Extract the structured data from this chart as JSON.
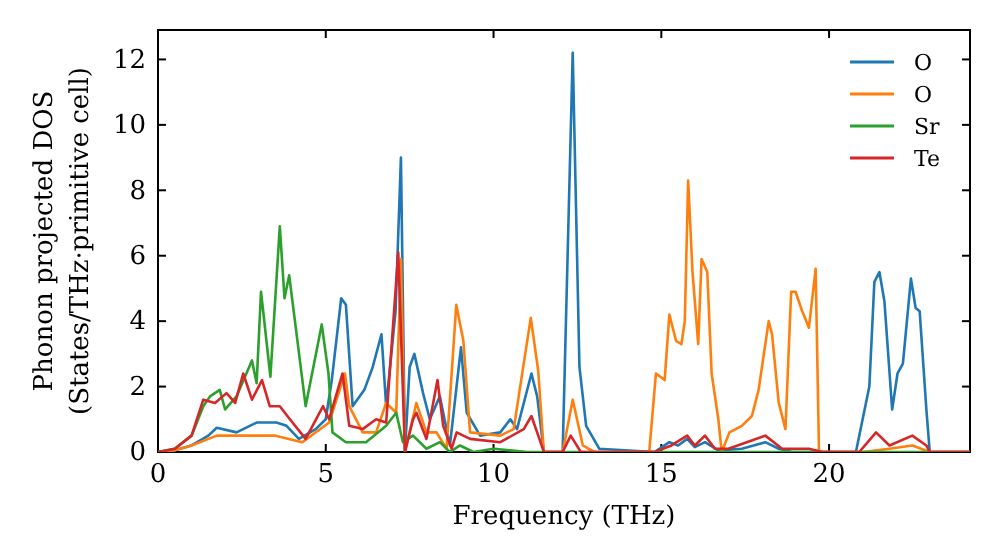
{
  "chart_data": {
    "type": "line",
    "xlabel": "Frequency (THz)",
    "ylabel": "Phonon projected DOS\n(States/THz·primitive cell)",
    "xlim": [
      0,
      24.2
    ],
    "ylim": [
      0,
      12.9
    ],
    "xticks": [
      0,
      5,
      10,
      15,
      20
    ],
    "yticks": [
      0,
      2,
      4,
      6,
      8,
      10,
      12
    ],
    "grid": false,
    "legend": "top right",
    "marker": "none",
    "line_style": "solid",
    "series": [
      {
        "name": "O",
        "color": "#1f77b4",
        "x": [
          0,
          0.5,
          1,
          1.5,
          1.75,
          2.34,
          2.94,
          3.53,
          3.83,
          4.2,
          4.7,
          5.0,
          5.18,
          5.46,
          5.6,
          5.8,
          6.15,
          6.4,
          6.66,
          6.8,
          7.08,
          7.24,
          7.36,
          7.5,
          7.64,
          7.9,
          8.1,
          8.4,
          8.7,
          9.03,
          9.2,
          9.6,
          10.2,
          10.5,
          10.7,
          11.13,
          11.3,
          11.5,
          12.06,
          12.36,
          12.56,
          12.76,
          13.15,
          14.8,
          15.24,
          15.5,
          15.77,
          16.0,
          16.3,
          16.7,
          17.4,
          18.1,
          18.5,
          18.9,
          20.8,
          21.2,
          21.35,
          21.5,
          21.65,
          21.88,
          22.04,
          22.2,
          22.44,
          22.58,
          22.7,
          22.9,
          23.0,
          24.2
        ],
        "values": [
          0,
          0.05,
          0.2,
          0.5,
          0.74,
          0.6,
          0.9,
          0.9,
          0.8,
          0.4,
          0.7,
          1.0,
          2.2,
          4.7,
          4.5,
          1.4,
          1.9,
          2.6,
          3.6,
          1.4,
          4.3,
          9.0,
          0,
          2.6,
          3.0,
          1.8,
          1.0,
          1.7,
          0.2,
          3.2,
          1.2,
          0.5,
          0.6,
          1.0,
          0.7,
          2.4,
          1.7,
          0,
          0,
          12.2,
          2.6,
          0.8,
          0.1,
          0,
          0.3,
          0.2,
          0.4,
          0.15,
          0.3,
          0.05,
          0.1,
          0.3,
          0.1,
          0,
          0,
          2.0,
          5.2,
          5.5,
          4.6,
          1.3,
          2.4,
          2.7,
          5.3,
          4.4,
          4.3,
          1.3,
          0,
          0
        ]
      },
      {
        "name": "O",
        "color": "#ff7f0e",
        "x": [
          0,
          0.5,
          1,
          1.75,
          2.5,
          3.5,
          4.3,
          5.1,
          5.57,
          5.7,
          6.1,
          6.5,
          6.8,
          7.1,
          7.24,
          7.36,
          7.7,
          8.0,
          8.3,
          8.6,
          8.89,
          9.1,
          9.3,
          10.2,
          10.6,
          11.11,
          11.33,
          11.5,
          12.06,
          12.36,
          12.66,
          13.0,
          14.64,
          14.84,
          15.1,
          15.24,
          15.44,
          15.6,
          15.7,
          15.8,
          15.93,
          16.1,
          16.2,
          16.37,
          16.5,
          16.7,
          16.8,
          17.03,
          17.4,
          17.7,
          17.9,
          18.2,
          18.3,
          18.5,
          18.7,
          18.87,
          19.0,
          19.2,
          19.4,
          19.6,
          19.7,
          21.0,
          21.8,
          22.48,
          23.0,
          24.2
        ],
        "values": [
          0,
          0.05,
          0.2,
          0.5,
          0.5,
          0.5,
          0.3,
          0.9,
          2.4,
          1.4,
          0.6,
          0.6,
          1.5,
          1.2,
          5.9,
          0,
          1.5,
          0.6,
          0.6,
          0.1,
          4.5,
          3.4,
          0.6,
          0.5,
          0.7,
          4.1,
          2.5,
          0,
          0,
          1.6,
          0.2,
          0,
          0,
          2.4,
          2.2,
          4.2,
          3.4,
          3.3,
          4.0,
          8.3,
          5.5,
          3.3,
          5.9,
          5.5,
          2.4,
          1.0,
          0,
          0.6,
          0.8,
          1.1,
          1.9,
          4.0,
          3.6,
          1.5,
          0.7,
          4.9,
          4.9,
          4.3,
          3.8,
          5.6,
          0,
          0,
          0.1,
          0.2,
          0,
          0
        ]
      },
      {
        "name": "Sr",
        "color": "#2ca02c",
        "x": [
          0,
          0.5,
          1,
          1.35,
          1.55,
          1.84,
          2.0,
          2.34,
          2.8,
          2.94,
          3.07,
          3.35,
          3.63,
          3.77,
          3.91,
          4.4,
          4.88,
          5.08,
          5.2,
          5.6,
          6.2,
          6.8,
          7.1,
          7.3,
          7.6,
          8.0,
          8.4,
          8.7,
          9.0,
          9.4,
          10,
          11,
          12,
          24.2
        ],
        "values": [
          0,
          0.1,
          0.5,
          1.4,
          1.7,
          1.9,
          1.3,
          1.7,
          2.8,
          2.1,
          4.9,
          2.3,
          6.9,
          4.7,
          5.4,
          1.4,
          3.9,
          2.4,
          0.6,
          0.3,
          0.3,
          0.8,
          1.2,
          0.3,
          0.5,
          0.1,
          0.3,
          0,
          0.2,
          0,
          0.1,
          0,
          0,
          0
        ]
      },
      {
        "name": "Te",
        "color": "#d62728",
        "x": [
          0,
          0.5,
          1,
          1.35,
          1.7,
          2.04,
          2.3,
          2.54,
          2.8,
          3.1,
          3.33,
          3.63,
          3.93,
          4.4,
          4.92,
          5.1,
          5.5,
          5.7,
          6.1,
          6.5,
          6.8,
          7.16,
          7.36,
          7.6,
          7.7,
          8.0,
          8.33,
          8.5,
          8.75,
          8.9,
          9.3,
          10.2,
          10.9,
          11.13,
          11.4,
          11.5,
          12.06,
          12.3,
          12.6,
          14.8,
          15.3,
          15.77,
          16.0,
          16.3,
          16.6,
          17.0,
          18.1,
          18.6,
          19.4,
          19.8,
          20.9,
          21.4,
          21.8,
          22.48,
          22.9,
          23.0,
          24.2
        ],
        "values": [
          0,
          0.1,
          0.5,
          1.6,
          1.5,
          1.8,
          1.5,
          2.4,
          1.6,
          2.2,
          1.4,
          1.4,
          1.0,
          0.4,
          1.4,
          1.0,
          2.4,
          0.8,
          0.7,
          1.0,
          0.9,
          6.1,
          0,
          1.0,
          1.2,
          0.4,
          2.2,
          0.8,
          0.1,
          0.6,
          0.4,
          0.3,
          0.7,
          1.1,
          0.3,
          0,
          0,
          0.5,
          0,
          0,
          0.2,
          0.5,
          0.2,
          0.5,
          0.1,
          0.1,
          0.5,
          0.1,
          0.1,
          0,
          0,
          0.6,
          0.2,
          0.5,
          0.2,
          0,
          0
        ]
      }
    ]
  }
}
